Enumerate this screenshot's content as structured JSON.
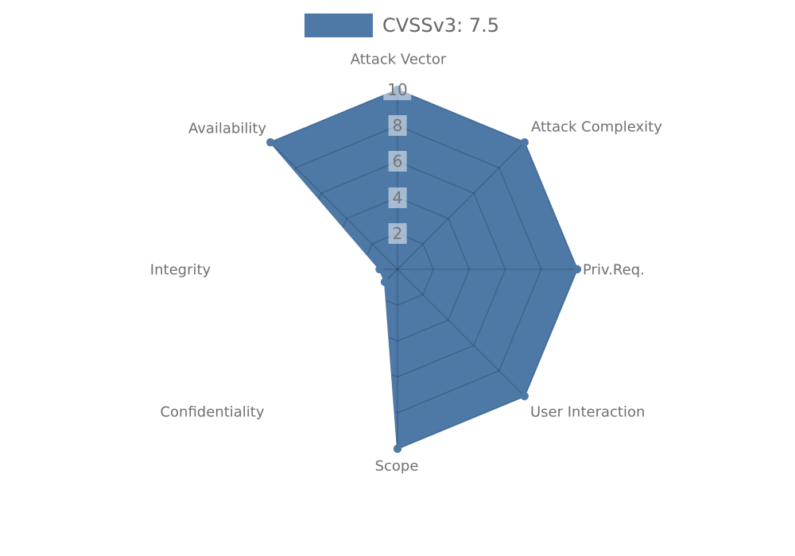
{
  "legend": {
    "label": "CVSSv3: 7.5",
    "swatch_color": "#4e79a7"
  },
  "chart_data": {
    "type": "radar",
    "title": "",
    "categories": [
      "Attack Vector",
      "Attack Complexity",
      "Priv.Req.",
      "User Interaction",
      "Scope",
      "Confidentiality",
      "Integrity",
      "Availability"
    ],
    "series": [
      {
        "name": "CVSSv3: 7.5",
        "values": [
          10,
          10,
          10,
          10,
          10,
          1,
          1,
          10
        ]
      }
    ],
    "ticks": [
      2,
      4,
      6,
      8,
      10
    ],
    "rmax": 10,
    "fill_color": "#4e79a7",
    "grid": "on",
    "grid_clipped_to_polygon": true,
    "legend_position": "top-center"
  }
}
